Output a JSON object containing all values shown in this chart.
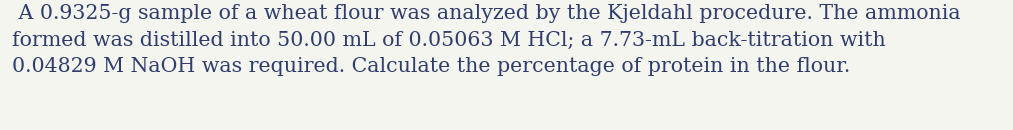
{
  "lines": [
    " A 0.9325-g sample of a wheat flour was analyzed by the Kjeldahl procedure. The ammonia",
    "formed was distilled into 50.00 mL of 0.05063 M HCl; a 7.73-mL back-titration with",
    "0.04829 M NaOH was required. Calculate the percentage of protein in the flour."
  ],
  "font_family": "serif",
  "font_size": 14.8,
  "text_color": "#2e3d6b",
  "background_color": "#f5f5f0",
  "figwidth": 10.13,
  "figheight": 1.3,
  "dpi": 100
}
